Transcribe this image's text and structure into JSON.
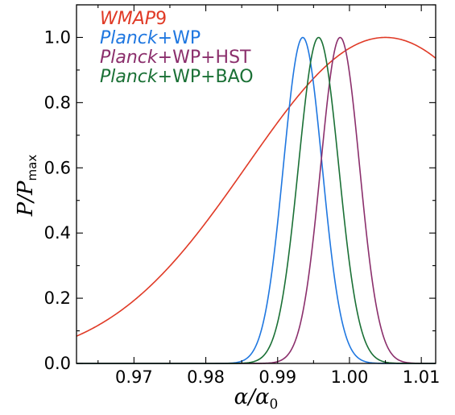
{
  "chart_data": {
    "type": "line",
    "xlabel": "α/α₀",
    "ylabel": "P/Pmax",
    "xlim": [
      0.962,
      1.012
    ],
    "ylim": [
      0.0,
      1.1
    ],
    "xticks": [
      "0.97",
      "0.98",
      "0.99",
      "1.00",
      "1.01"
    ],
    "yticks": [
      "0.0",
      "0.2",
      "0.4",
      "0.6",
      "0.8",
      "1.0"
    ],
    "grid": false,
    "legend_position": "top-left",
    "series": [
      {
        "name_italic": "WMAP",
        "name_plain": "9",
        "color": "#e03a26",
        "shape": "gaussian",
        "peak_x": 1.005,
        "sigma": 0.0193
      },
      {
        "name_italic": "Planck",
        "name_plain": "+WP",
        "color": "#1f77e0",
        "shape": "gaussian",
        "peak_x": 0.9935,
        "sigma": 0.0027
      },
      {
        "name_italic": "Planck",
        "name_plain": "+WP+HST",
        "color": "#8b2f6c",
        "shape": "gaussian",
        "peak_x": 0.9987,
        "sigma": 0.0027
      },
      {
        "name_italic": "Planck",
        "name_plain": "+WP+BAO",
        "color": "#1a7035",
        "shape": "gaussian",
        "peak_x": 0.9957,
        "sigma": 0.0028
      }
    ]
  }
}
